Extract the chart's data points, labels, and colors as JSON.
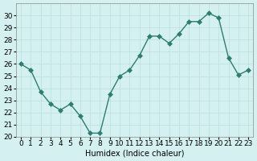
{
  "x": [
    0,
    1,
    2,
    3,
    4,
    5,
    6,
    7,
    8,
    9,
    10,
    11,
    12,
    13,
    14,
    15,
    16,
    17,
    18,
    19,
    20,
    21,
    22,
    23
  ],
  "y": [
    26.0,
    25.5,
    23.7,
    22.7,
    22.2,
    22.7,
    21.7,
    20.3,
    20.3,
    23.5,
    25.0,
    25.5,
    26.7,
    28.3,
    28.3,
    27.7,
    28.5,
    29.5,
    29.5,
    30.2,
    29.8,
    26.5,
    25.1,
    25.5
  ],
  "line_color": "#2e7d6e",
  "marker": "D",
  "marker_size": 3,
  "bg_color": "#d4f0f0",
  "grid_color": "#b8dede",
  "xlabel": "Humidex (Indice chaleur)",
  "ylim": [
    20,
    31
  ],
  "xlim": [
    -0.5,
    23.5
  ],
  "yticks": [
    20,
    21,
    22,
    23,
    24,
    25,
    26,
    27,
    28,
    29,
    30
  ],
  "xtick_labels": [
    "0",
    "1",
    "2",
    "3",
    "4",
    "5",
    "6",
    "7",
    "8",
    "9",
    "10",
    "11",
    "12",
    "13",
    "14",
    "15",
    "16",
    "17",
    "18",
    "19",
    "20",
    "21",
    "22",
    "23"
  ],
  "label_fontsize": 7,
  "tick_fontsize": 6.5
}
